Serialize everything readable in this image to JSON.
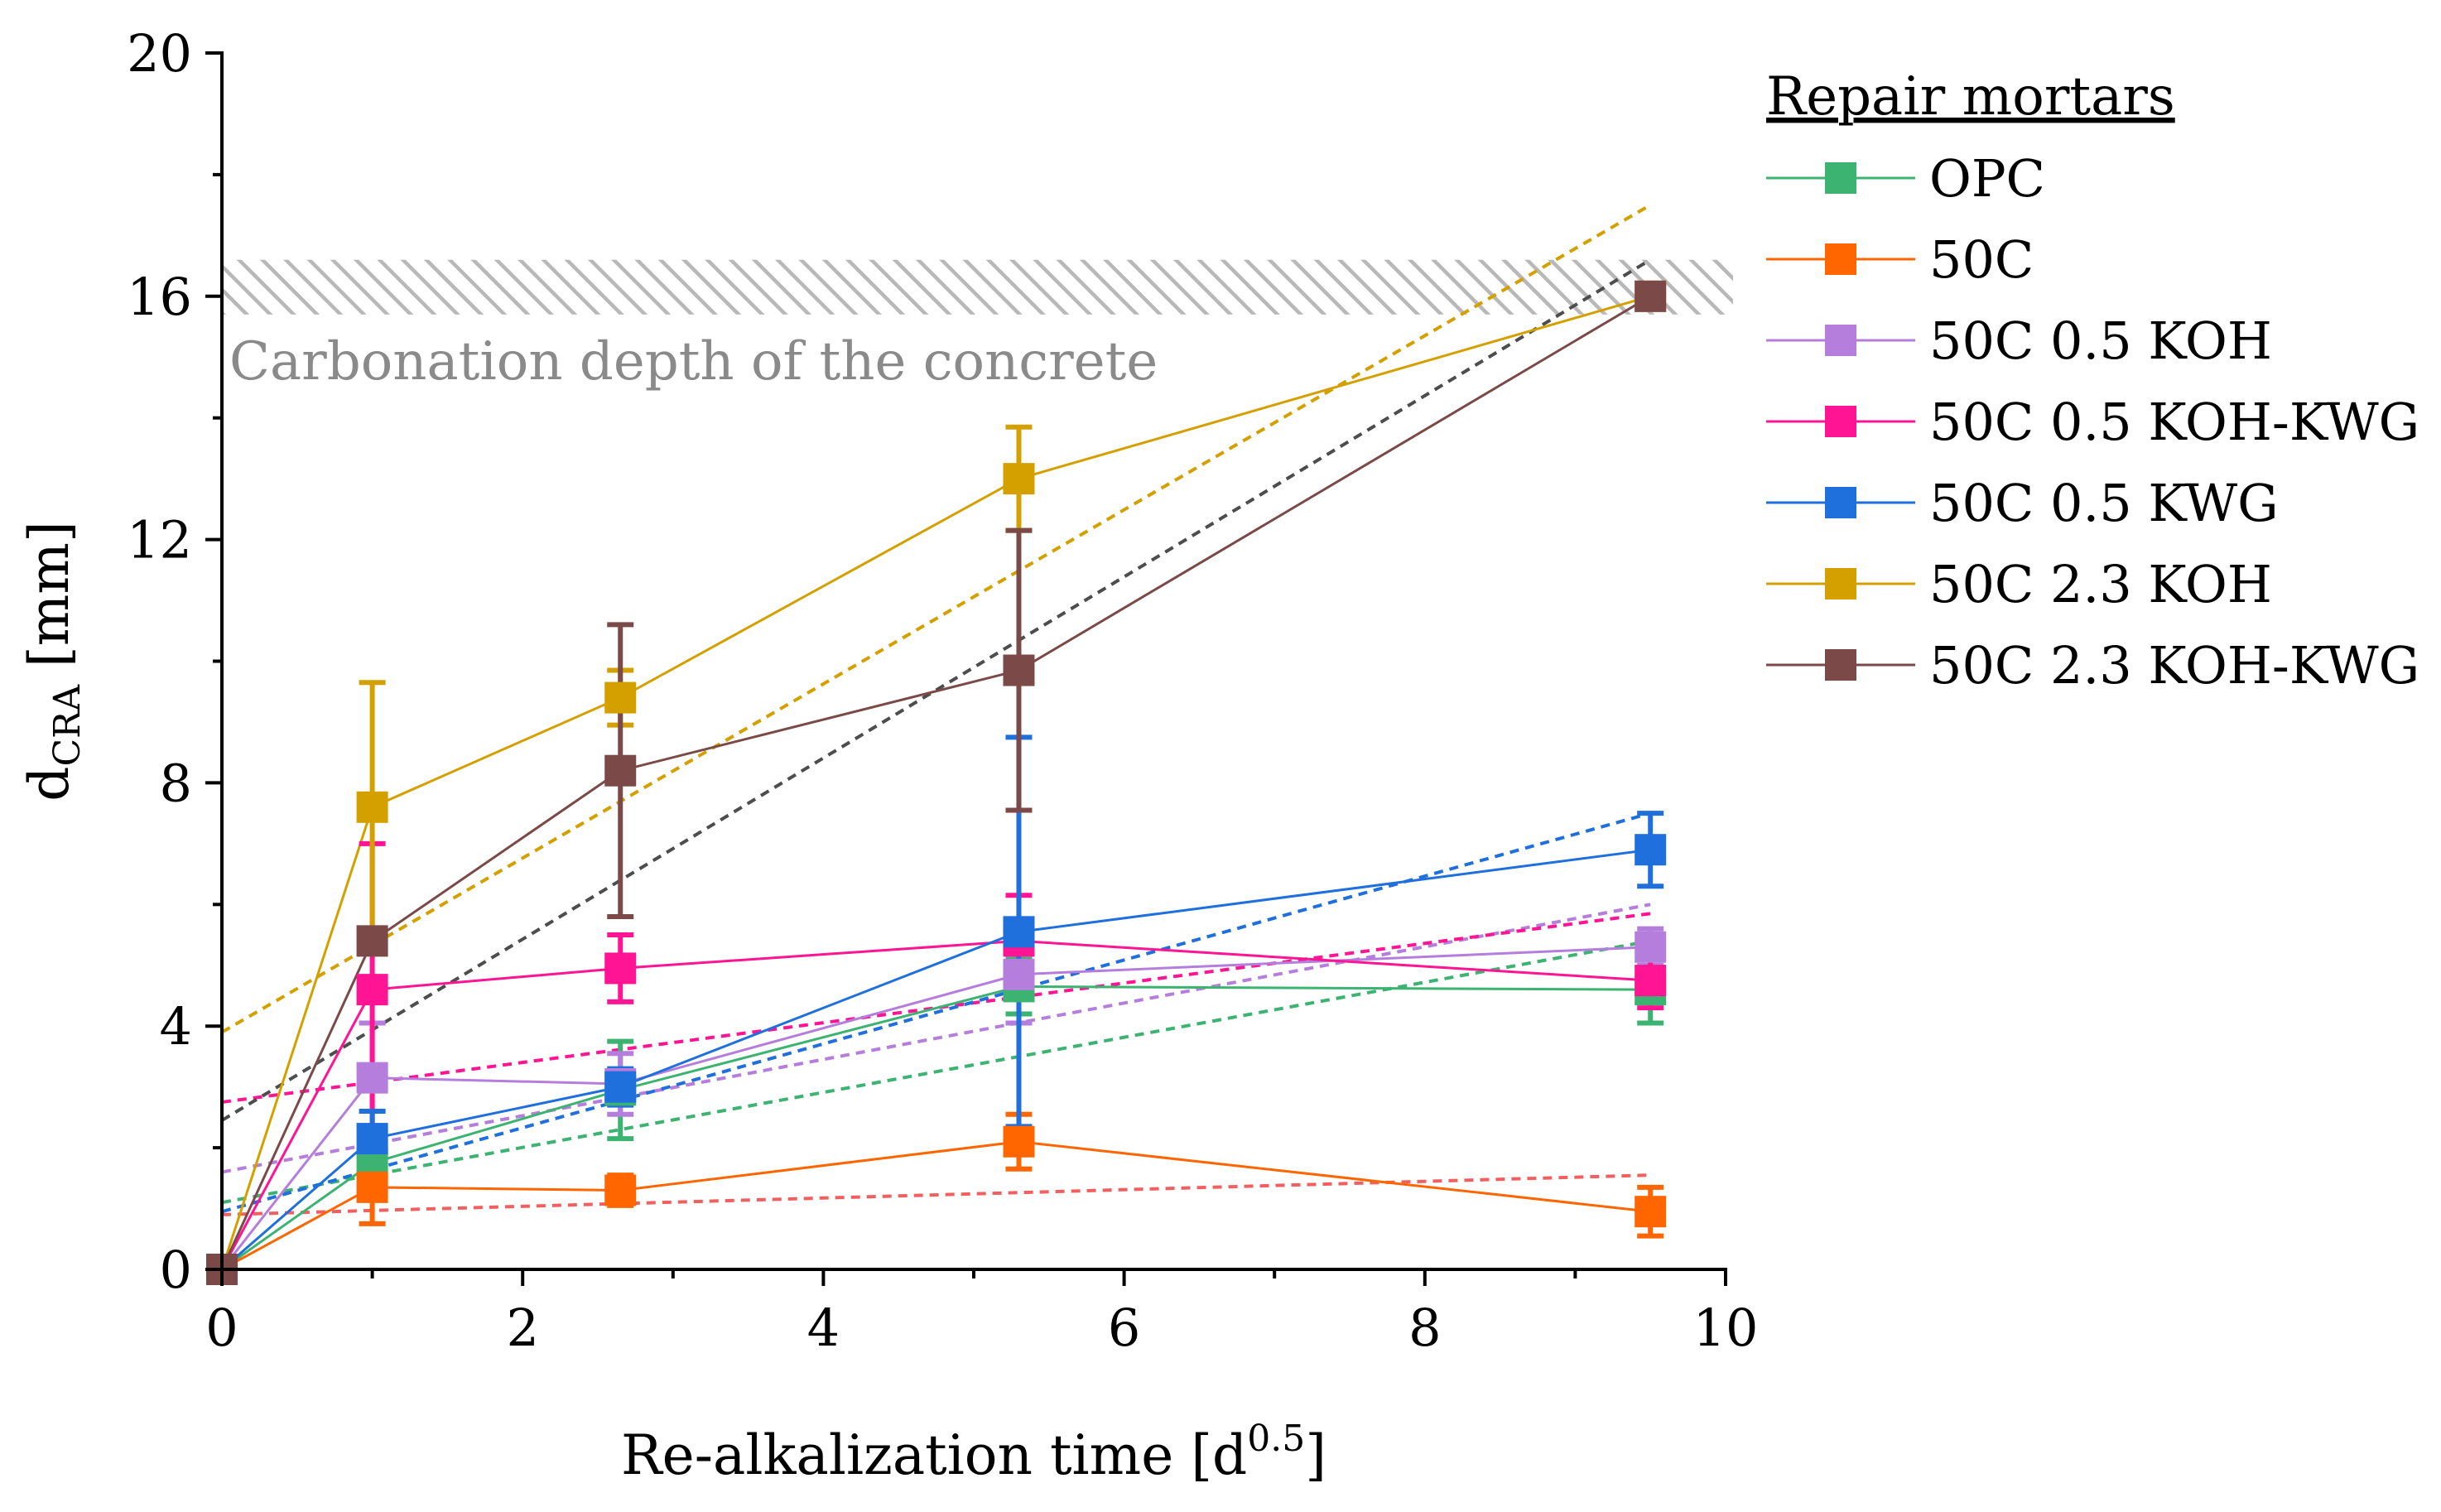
{
  "chart_data": {
    "type": "line",
    "title": "",
    "xlabel": "Re-alkalization time [d",
    "xlabel_sup": "0.5",
    "xlabel_end": "]",
    "ylabel": "d",
    "ylabel_sub": "CRA",
    "ylabel_end": " [mm]",
    "xlim": [
      0,
      10
    ],
    "ylim": [
      0,
      20
    ],
    "xticks": [
      "0",
      "2",
      "4",
      "6",
      "8",
      "10"
    ],
    "yticks": [
      "0",
      "4",
      "8",
      "12",
      "16",
      "20"
    ],
    "grid": false,
    "legend_title": "Repair mortars",
    "legend_position": "right",
    "x": [
      0,
      1,
      2.65,
      5.3,
      9.5
    ],
    "reference_band": {
      "label": "Carbonation depth of the concrete",
      "y_low": 15.7,
      "y_high": 16.6
    },
    "series": [
      {
        "name": "OPC",
        "color": "#3cb371",
        "values": [
          0,
          1.75,
          2.95,
          4.65,
          4.6
        ],
        "error": [
          0,
          0.3,
          0.8,
          0.45,
          0.55
        ],
        "trend": [
          1.1,
          5.4
        ]
      },
      {
        "name": "50C",
        "color": "#ff6600",
        "trend_color": "#f06060",
        "values": [
          0,
          1.35,
          1.3,
          2.1,
          0.95
        ],
        "error": [
          0,
          0.6,
          0.25,
          0.45,
          0.4
        ],
        "trend": [
          0.9,
          1.55
        ]
      },
      {
        "name": "50C 0.5 KOH",
        "color": "#b57edc",
        "values": [
          0,
          3.15,
          3.05,
          4.85,
          5.3
        ],
        "error": [
          0,
          0.9,
          0.5,
          0.8,
          0.3
        ],
        "trend": [
          1.6,
          6.0
        ]
      },
      {
        "name": "50C 0.5 KOH-KWG",
        "color": "#ff1493",
        "values": [
          0,
          4.6,
          4.95,
          5.4,
          4.75
        ],
        "error": [
          0,
          2.4,
          0.55,
          0.75,
          0.45
        ],
        "trend": [
          2.75,
          5.85
        ]
      },
      {
        "name": "50C 0.5 KWG",
        "color": "#1f6fdc",
        "values": [
          0,
          2.15,
          3.0,
          5.55,
          6.9
        ],
        "error": [
          0,
          0.45,
          0.3,
          3.2,
          0.6
        ],
        "trend": [
          0.95,
          7.5
        ]
      },
      {
        "name": "50C 2.3 KOH",
        "color": "#d4a000",
        "values": [
          0,
          7.6,
          9.4,
          13.0,
          16.0
        ],
        "error": [
          0,
          2.05,
          0.45,
          0.85,
          0
        ],
        "trend": [
          3.9,
          17.5
        ]
      },
      {
        "name": "50C 2.3 KOH-KWG",
        "color": "#7b4a48",
        "trend_color": "#4d4d4d",
        "values": [
          0,
          5.4,
          8.2,
          9.85,
          16.0
        ],
        "error": [
          0,
          0,
          2.4,
          2.3,
          0
        ],
        "trend": [
          2.45,
          16.6
        ]
      }
    ]
  }
}
